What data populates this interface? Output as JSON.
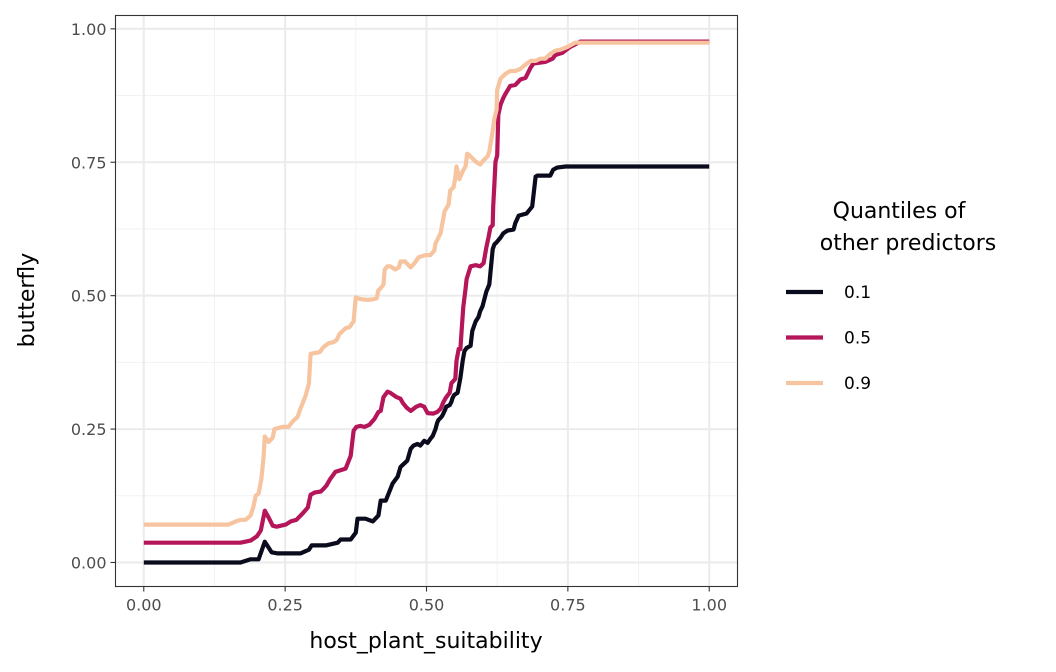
{
  "chart_data": {
    "type": "line",
    "title": "",
    "xlabel": "host_plant_suitability",
    "ylabel": "butterfly",
    "xlim": [
      -0.05,
      1.05
    ],
    "ylim": [
      -0.045,
      1.025
    ],
    "xticks": [
      "0.00",
      "0.25",
      "0.50",
      "0.75",
      "1.00"
    ],
    "yticks": [
      "0.00",
      "0.25",
      "0.50",
      "0.75",
      "1.00"
    ],
    "grid": true,
    "legend": {
      "title_lines": [
        "Quantiles of",
        "other predictors"
      ],
      "placement": "right"
    },
    "series": [
      {
        "name": "0.1",
        "color": "#0b0b1e",
        "points": [
          [
            0,
            0
          ],
          [
            0.171,
            0
          ],
          [
            0.189,
            0.006
          ],
          [
            0.203,
            0.006
          ],
          [
            0.214,
            0.039
          ],
          [
            0.226,
            0.019
          ],
          [
            0.237,
            0.017
          ],
          [
            0.277,
            0.017
          ],
          [
            0.292,
            0.024
          ],
          [
            0.297,
            0.032
          ],
          [
            0.322,
            0.032
          ],
          [
            0.343,
            0.037
          ],
          [
            0.348,
            0.043
          ],
          [
            0.366,
            0.043
          ],
          [
            0.375,
            0.056
          ],
          [
            0.378,
            0.082
          ],
          [
            0.392,
            0.082
          ],
          [
            0.405,
            0.077
          ],
          [
            0.415,
            0.088
          ],
          [
            0.419,
            0.116
          ],
          [
            0.428,
            0.116
          ],
          [
            0.44,
            0.148
          ],
          [
            0.449,
            0.161
          ],
          [
            0.454,
            0.179
          ],
          [
            0.458,
            0.183
          ],
          [
            0.466,
            0.191
          ],
          [
            0.472,
            0.213
          ],
          [
            0.477,
            0.219
          ],
          [
            0.484,
            0.222
          ],
          [
            0.489,
            0.219
          ],
          [
            0.496,
            0.228
          ],
          [
            0.502,
            0.224
          ],
          [
            0.507,
            0.232
          ],
          [
            0.511,
            0.237
          ],
          [
            0.516,
            0.25
          ],
          [
            0.519,
            0.262
          ],
          [
            0.521,
            0.267
          ],
          [
            0.525,
            0.271
          ],
          [
            0.528,
            0.275
          ],
          [
            0.532,
            0.284
          ],
          [
            0.535,
            0.292
          ],
          [
            0.541,
            0.295
          ],
          [
            0.544,
            0.301
          ],
          [
            0.546,
            0.308
          ],
          [
            0.549,
            0.314
          ],
          [
            0.555,
            0.318
          ],
          [
            0.56,
            0.346
          ],
          [
            0.564,
            0.378
          ],
          [
            0.567,
            0.396
          ],
          [
            0.571,
            0.402
          ],
          [
            0.578,
            0.406
          ],
          [
            0.581,
            0.434
          ],
          [
            0.587,
            0.452
          ],
          [
            0.592,
            0.46
          ],
          [
            0.595,
            0.471
          ],
          [
            0.599,
            0.48
          ],
          [
            0.606,
            0.508
          ],
          [
            0.611,
            0.521
          ],
          [
            0.617,
            0.587
          ],
          [
            0.62,
            0.596
          ],
          [
            0.624,
            0.6
          ],
          [
            0.631,
            0.609
          ],
          [
            0.636,
            0.617
          ],
          [
            0.643,
            0.622
          ],
          [
            0.654,
            0.624
          ],
          [
            0.657,
            0.636
          ],
          [
            0.663,
            0.65
          ],
          [
            0.677,
            0.654
          ],
          [
            0.687,
            0.667
          ],
          [
            0.693,
            0.723
          ],
          [
            0.696,
            0.725
          ],
          [
            0.719,
            0.725
          ],
          [
            0.724,
            0.736
          ],
          [
            0.731,
            0.74
          ],
          [
            0.746,
            0.742
          ],
          [
            1,
            0.742
          ]
        ]
      },
      {
        "name": "0.5",
        "color": "#b5165a",
        "points": [
          [
            0,
            0.037
          ],
          [
            0.171,
            0.037
          ],
          [
            0.189,
            0.041
          ],
          [
            0.2,
            0.049
          ],
          [
            0.207,
            0.06
          ],
          [
            0.214,
            0.097
          ],
          [
            0.221,
            0.084
          ],
          [
            0.228,
            0.069
          ],
          [
            0.235,
            0.067
          ],
          [
            0.251,
            0.071
          ],
          [
            0.26,
            0.077
          ],
          [
            0.27,
            0.08
          ],
          [
            0.281,
            0.092
          ],
          [
            0.29,
            0.103
          ],
          [
            0.295,
            0.127
          ],
          [
            0.302,
            0.131
          ],
          [
            0.313,
            0.133
          ],
          [
            0.318,
            0.138
          ],
          [
            0.323,
            0.144
          ],
          [
            0.33,
            0.157
          ],
          [
            0.339,
            0.17
          ],
          [
            0.345,
            0.172
          ],
          [
            0.357,
            0.176
          ],
          [
            0.366,
            0.2
          ],
          [
            0.371,
            0.247
          ],
          [
            0.376,
            0.254
          ],
          [
            0.383,
            0.256
          ],
          [
            0.39,
            0.254
          ],
          [
            0.399,
            0.258
          ],
          [
            0.408,
            0.269
          ],
          [
            0.415,
            0.282
          ],
          [
            0.419,
            0.284
          ],
          [
            0.424,
            0.31
          ],
          [
            0.431,
            0.32
          ],
          [
            0.436,
            0.318
          ],
          [
            0.447,
            0.31
          ],
          [
            0.454,
            0.307
          ],
          [
            0.458,
            0.299
          ],
          [
            0.465,
            0.29
          ],
          [
            0.472,
            0.284
          ],
          [
            0.482,
            0.292
          ],
          [
            0.489,
            0.295
          ],
          [
            0.496,
            0.292
          ],
          [
            0.502,
            0.28
          ],
          [
            0.512,
            0.279
          ],
          [
            0.519,
            0.282
          ],
          [
            0.525,
            0.288
          ],
          [
            0.53,
            0.301
          ],
          [
            0.535,
            0.31
          ],
          [
            0.541,
            0.318
          ],
          [
            0.544,
            0.336
          ],
          [
            0.551,
            0.344
          ],
          [
            0.553,
            0.378
          ],
          [
            0.557,
            0.4
          ],
          [
            0.56,
            0.4
          ],
          [
            0.562,
            0.434
          ],
          [
            0.565,
            0.479
          ],
          [
            0.569,
            0.512
          ],
          [
            0.571,
            0.531
          ],
          [
            0.578,
            0.555
          ],
          [
            0.587,
            0.557
          ],
          [
            0.595,
            0.555
          ],
          [
            0.601,
            0.561
          ],
          [
            0.606,
            0.591
          ],
          [
            0.61,
            0.611
          ],
          [
            0.613,
            0.628
          ],
          [
            0.617,
            0.632
          ],
          [
            0.618,
            0.667
          ],
          [
            0.62,
            0.71
          ],
          [
            0.622,
            0.751
          ],
          [
            0.625,
            0.763
          ],
          [
            0.627,
            0.839
          ],
          [
            0.631,
            0.858
          ],
          [
            0.636,
            0.871
          ],
          [
            0.64,
            0.879
          ],
          [
            0.648,
            0.893
          ],
          [
            0.657,
            0.895
          ],
          [
            0.666,
            0.905
          ],
          [
            0.675,
            0.908
          ],
          [
            0.684,
            0.927
          ],
          [
            0.689,
            0.935
          ],
          [
            0.71,
            0.938
          ],
          [
            0.723,
            0.944
          ],
          [
            0.728,
            0.951
          ],
          [
            0.74,
            0.955
          ],
          [
            0.754,
            0.966
          ],
          [
            0.772,
            0.976
          ],
          [
            1,
            0.976
          ]
        ]
      },
      {
        "name": "0.9",
        "color": "#f7c4a0",
        "points": [
          [
            0,
            0.071
          ],
          [
            0.15,
            0.071
          ],
          [
            0.163,
            0.077
          ],
          [
            0.171,
            0.08
          ],
          [
            0.18,
            0.08
          ],
          [
            0.189,
            0.088
          ],
          [
            0.194,
            0.105
          ],
          [
            0.198,
            0.125
          ],
          [
            0.203,
            0.129
          ],
          [
            0.208,
            0.157
          ],
          [
            0.212,
            0.198
          ],
          [
            0.214,
            0.236
          ],
          [
            0.221,
            0.226
          ],
          [
            0.228,
            0.234
          ],
          [
            0.231,
            0.25
          ],
          [
            0.245,
            0.254
          ],
          [
            0.256,
            0.254
          ],
          [
            0.263,
            0.264
          ],
          [
            0.272,
            0.273
          ],
          [
            0.277,
            0.288
          ],
          [
            0.286,
            0.312
          ],
          [
            0.292,
            0.335
          ],
          [
            0.295,
            0.391
          ],
          [
            0.304,
            0.393
          ],
          [
            0.311,
            0.394
          ],
          [
            0.318,
            0.404
          ],
          [
            0.327,
            0.411
          ],
          [
            0.336,
            0.413
          ],
          [
            0.341,
            0.417
          ],
          [
            0.346,
            0.428
          ],
          [
            0.352,
            0.434
          ],
          [
            0.357,
            0.439
          ],
          [
            0.364,
            0.441
          ],
          [
            0.371,
            0.452
          ],
          [
            0.375,
            0.497
          ],
          [
            0.378,
            0.495
          ],
          [
            0.387,
            0.493
          ],
          [
            0.396,
            0.492
          ],
          [
            0.405,
            0.493
          ],
          [
            0.412,
            0.495
          ],
          [
            0.415,
            0.51
          ],
          [
            0.419,
            0.514
          ],
          [
            0.424,
            0.521
          ],
          [
            0.426,
            0.549
          ],
          [
            0.431,
            0.555
          ],
          [
            0.436,
            0.555
          ],
          [
            0.445,
            0.549
          ],
          [
            0.451,
            0.553
          ],
          [
            0.454,
            0.564
          ],
          [
            0.462,
            0.564
          ],
          [
            0.472,
            0.553
          ],
          [
            0.479,
            0.561
          ],
          [
            0.486,
            0.572
          ],
          [
            0.498,
            0.576
          ],
          [
            0.507,
            0.576
          ],
          [
            0.514,
            0.585
          ],
          [
            0.516,
            0.598
          ],
          [
            0.525,
            0.617
          ],
          [
            0.532,
            0.658
          ],
          [
            0.539,
            0.671
          ],
          [
            0.542,
            0.697
          ],
          [
            0.548,
            0.703
          ],
          [
            0.551,
            0.721
          ],
          [
            0.553,
            0.742
          ],
          [
            0.558,
            0.718
          ],
          [
            0.564,
            0.733
          ],
          [
            0.569,
            0.742
          ],
          [
            0.572,
            0.766
          ],
          [
            0.578,
            0.761
          ],
          [
            0.587,
            0.751
          ],
          [
            0.595,
            0.746
          ],
          [
            0.602,
            0.755
          ],
          [
            0.608,
            0.761
          ],
          [
            0.611,
            0.77
          ],
          [
            0.617,
            0.809
          ],
          [
            0.62,
            0.832
          ],
          [
            0.624,
            0.849
          ],
          [
            0.625,
            0.886
          ],
          [
            0.631,
            0.907
          ],
          [
            0.64,
            0.916
          ],
          [
            0.648,
            0.921
          ],
          [
            0.657,
            0.921
          ],
          [
            0.666,
            0.925
          ],
          [
            0.675,
            0.933
          ],
          [
            0.684,
            0.94
          ],
          [
            0.693,
            0.94
          ],
          [
            0.701,
            0.944
          ],
          [
            0.71,
            0.944
          ],
          [
            0.719,
            0.953
          ],
          [
            0.728,
            0.959
          ],
          [
            0.737,
            0.961
          ],
          [
            0.749,
            0.966
          ],
          [
            0.763,
            0.974
          ],
          [
            1,
            0.974
          ]
        ]
      }
    ]
  }
}
